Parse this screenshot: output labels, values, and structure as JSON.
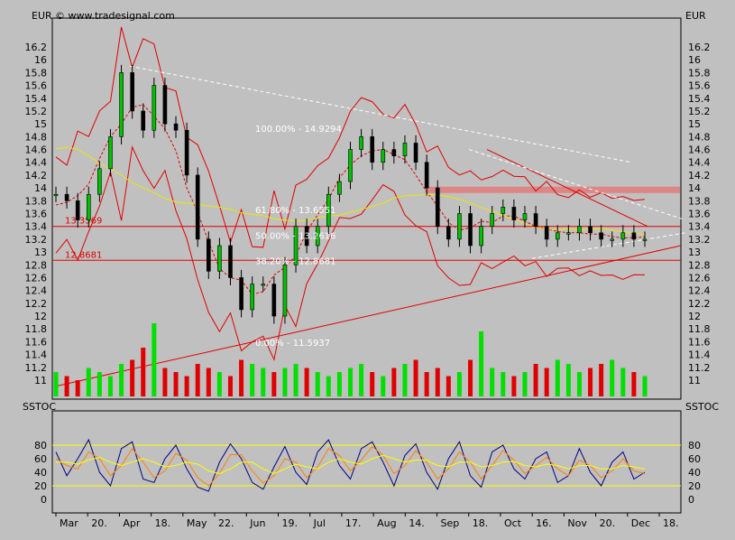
{
  "header": {
    "currency_left": "EUR",
    "currency_right": "EUR",
    "copyright": "© www.tradesignal.com",
    "osc_left": "SSTOC",
    "osc_right": "SSTOC"
  },
  "chart_data": [
    {
      "type": "candlestick",
      "title": "",
      "ylabel": "EUR",
      "ylim": [
        10.8,
        16.4
      ],
      "y_ticks": [
        "16.2",
        "16",
        "15.8",
        "15.6",
        "15.4",
        "15.2",
        "15",
        "14.8",
        "14.6",
        "14.4",
        "14.2",
        "14",
        "13.8",
        "13.6",
        "13.4",
        "13.2",
        "13",
        "12.8",
        "12.6",
        "12.4",
        "12.2",
        "12",
        "11.8",
        "11.6",
        "11.4",
        "11.2",
        "11"
      ],
      "x_ticks": [
        "Mar",
        "20.",
        "Apr",
        "18.",
        "May",
        "22.",
        "Jun",
        "19.",
        "Jul",
        "17.",
        "Aug",
        "14.",
        "Sep",
        "18.",
        "Oct",
        "16.",
        "Nov",
        "20.",
        "Dec",
        "18."
      ],
      "horizontal_levels": [
        {
          "value": 13.4,
          "label": "13.3569"
        },
        {
          "value": 12.87,
          "label": "12.8681"
        }
      ],
      "fibonacci_labels": [
        {
          "value": 14.93,
          "label": "100.00% - 14.9294"
        },
        {
          "value": 13.66,
          "label": "61.80% - 13.6551"
        },
        {
          "value": 13.26,
          "label": "50.00% - 13.2616"
        },
        {
          "value": 12.87,
          "label": "38.20% - 12.8681"
        },
        {
          "value": 11.59,
          "label": "0.00% - 11.5937"
        }
      ],
      "resistance_zone": [
        13.92,
        14.02
      ],
      "close_series": {
        "x": [
          0,
          5,
          10,
          15,
          20,
          25,
          30,
          35,
          40,
          45,
          50,
          55,
          60,
          65,
          70,
          75,
          80,
          85,
          90,
          95,
          100,
          105,
          110,
          115,
          120,
          125,
          130,
          135,
          140,
          145,
          150,
          155,
          160,
          165,
          170,
          175,
          180,
          185,
          190,
          195,
          200,
          205,
          210,
          215,
          220,
          225,
          230,
          235,
          240,
          245,
          250,
          255,
          260,
          265,
          270
        ],
        "values": [
          13.9,
          13.8,
          13.5,
          13.9,
          14.3,
          14.8,
          15.8,
          15.2,
          14.9,
          15.6,
          15.0,
          14.9,
          14.2,
          13.2,
          12.7,
          13.1,
          12.6,
          12.1,
          12.5,
          12.5,
          12.0,
          12.8,
          13.4,
          13.1,
          13.4,
          13.9,
          14.1,
          14.6,
          14.8,
          14.4,
          14.6,
          14.5,
          14.7,
          14.4,
          14.0,
          13.4,
          13.2,
          13.6,
          13.1,
          13.4,
          13.6,
          13.7,
          13.5,
          13.6,
          13.4,
          13.2,
          13.3,
          13.3,
          13.4,
          13.3,
          13.2,
          13.2,
          13.3,
          13.2,
          13.2
        ]
      },
      "volume": [
        6,
        5,
        4,
        7,
        6,
        5,
        8,
        9,
        12,
        18,
        7,
        6,
        5,
        8,
        7,
        6,
        5,
        9,
        8,
        7,
        6,
        7,
        8,
        7,
        6,
        5,
        6,
        7,
        8,
        6,
        5,
        7,
        8,
        9,
        6,
        7,
        5,
        6,
        9,
        16,
        7,
        6,
        5,
        6,
        8,
        7,
        9,
        8,
        6,
        7,
        8,
        9,
        7,
        6,
        5
      ]
    },
    {
      "type": "line",
      "title": "SSTOC",
      "ylim": [
        0,
        100
      ],
      "y_ticks": [
        "80",
        "60",
        "40",
        "20",
        "0"
      ],
      "horizontal_levels": [
        80,
        20
      ],
      "series": [
        {
          "values": [
            70,
            35,
            60,
            88,
            40,
            20,
            75,
            85,
            30,
            25,
            60,
            80,
            45,
            18,
            12,
            55,
            82,
            60,
            25,
            15,
            48,
            78,
            40,
            22,
            70,
            88,
            50,
            30,
            75,
            85,
            55,
            20,
            65,
            82,
            40,
            15,
            60,
            85,
            35,
            18,
            70,
            80,
            45,
            30,
            60,
            70,
            25,
            35,
            75,
            40,
            20,
            55,
            70,
            30,
            40
          ]
        },
        {
          "values": [
            60,
            50,
            45,
            70,
            60,
            35,
            50,
            75,
            55,
            32,
            42,
            68,
            58,
            32,
            20,
            38,
            66,
            66,
            42,
            24,
            35,
            60,
            55,
            32,
            48,
            75,
            65,
            42,
            58,
            78,
            65,
            38,
            50,
            72,
            55,
            30,
            45,
            70,
            55,
            30,
            50,
            72,
            58,
            38,
            50,
            62,
            45,
            35,
            58,
            50,
            32,
            42,
            60,
            42,
            38
          ]
        },
        {
          "values": [
            55,
            55,
            52,
            58,
            62,
            55,
            50,
            55,
            60,
            55,
            48,
            50,
            55,
            52,
            42,
            38,
            45,
            55,
            55,
            45,
            38,
            45,
            52,
            48,
            45,
            55,
            60,
            55,
            52,
            60,
            65,
            60,
            55,
            58,
            58,
            50,
            48,
            55,
            55,
            48,
            50,
            55,
            56,
            50,
            48,
            52,
            50,
            45,
            50,
            50,
            45,
            45,
            50,
            48,
            45
          ]
        }
      ]
    }
  ]
}
